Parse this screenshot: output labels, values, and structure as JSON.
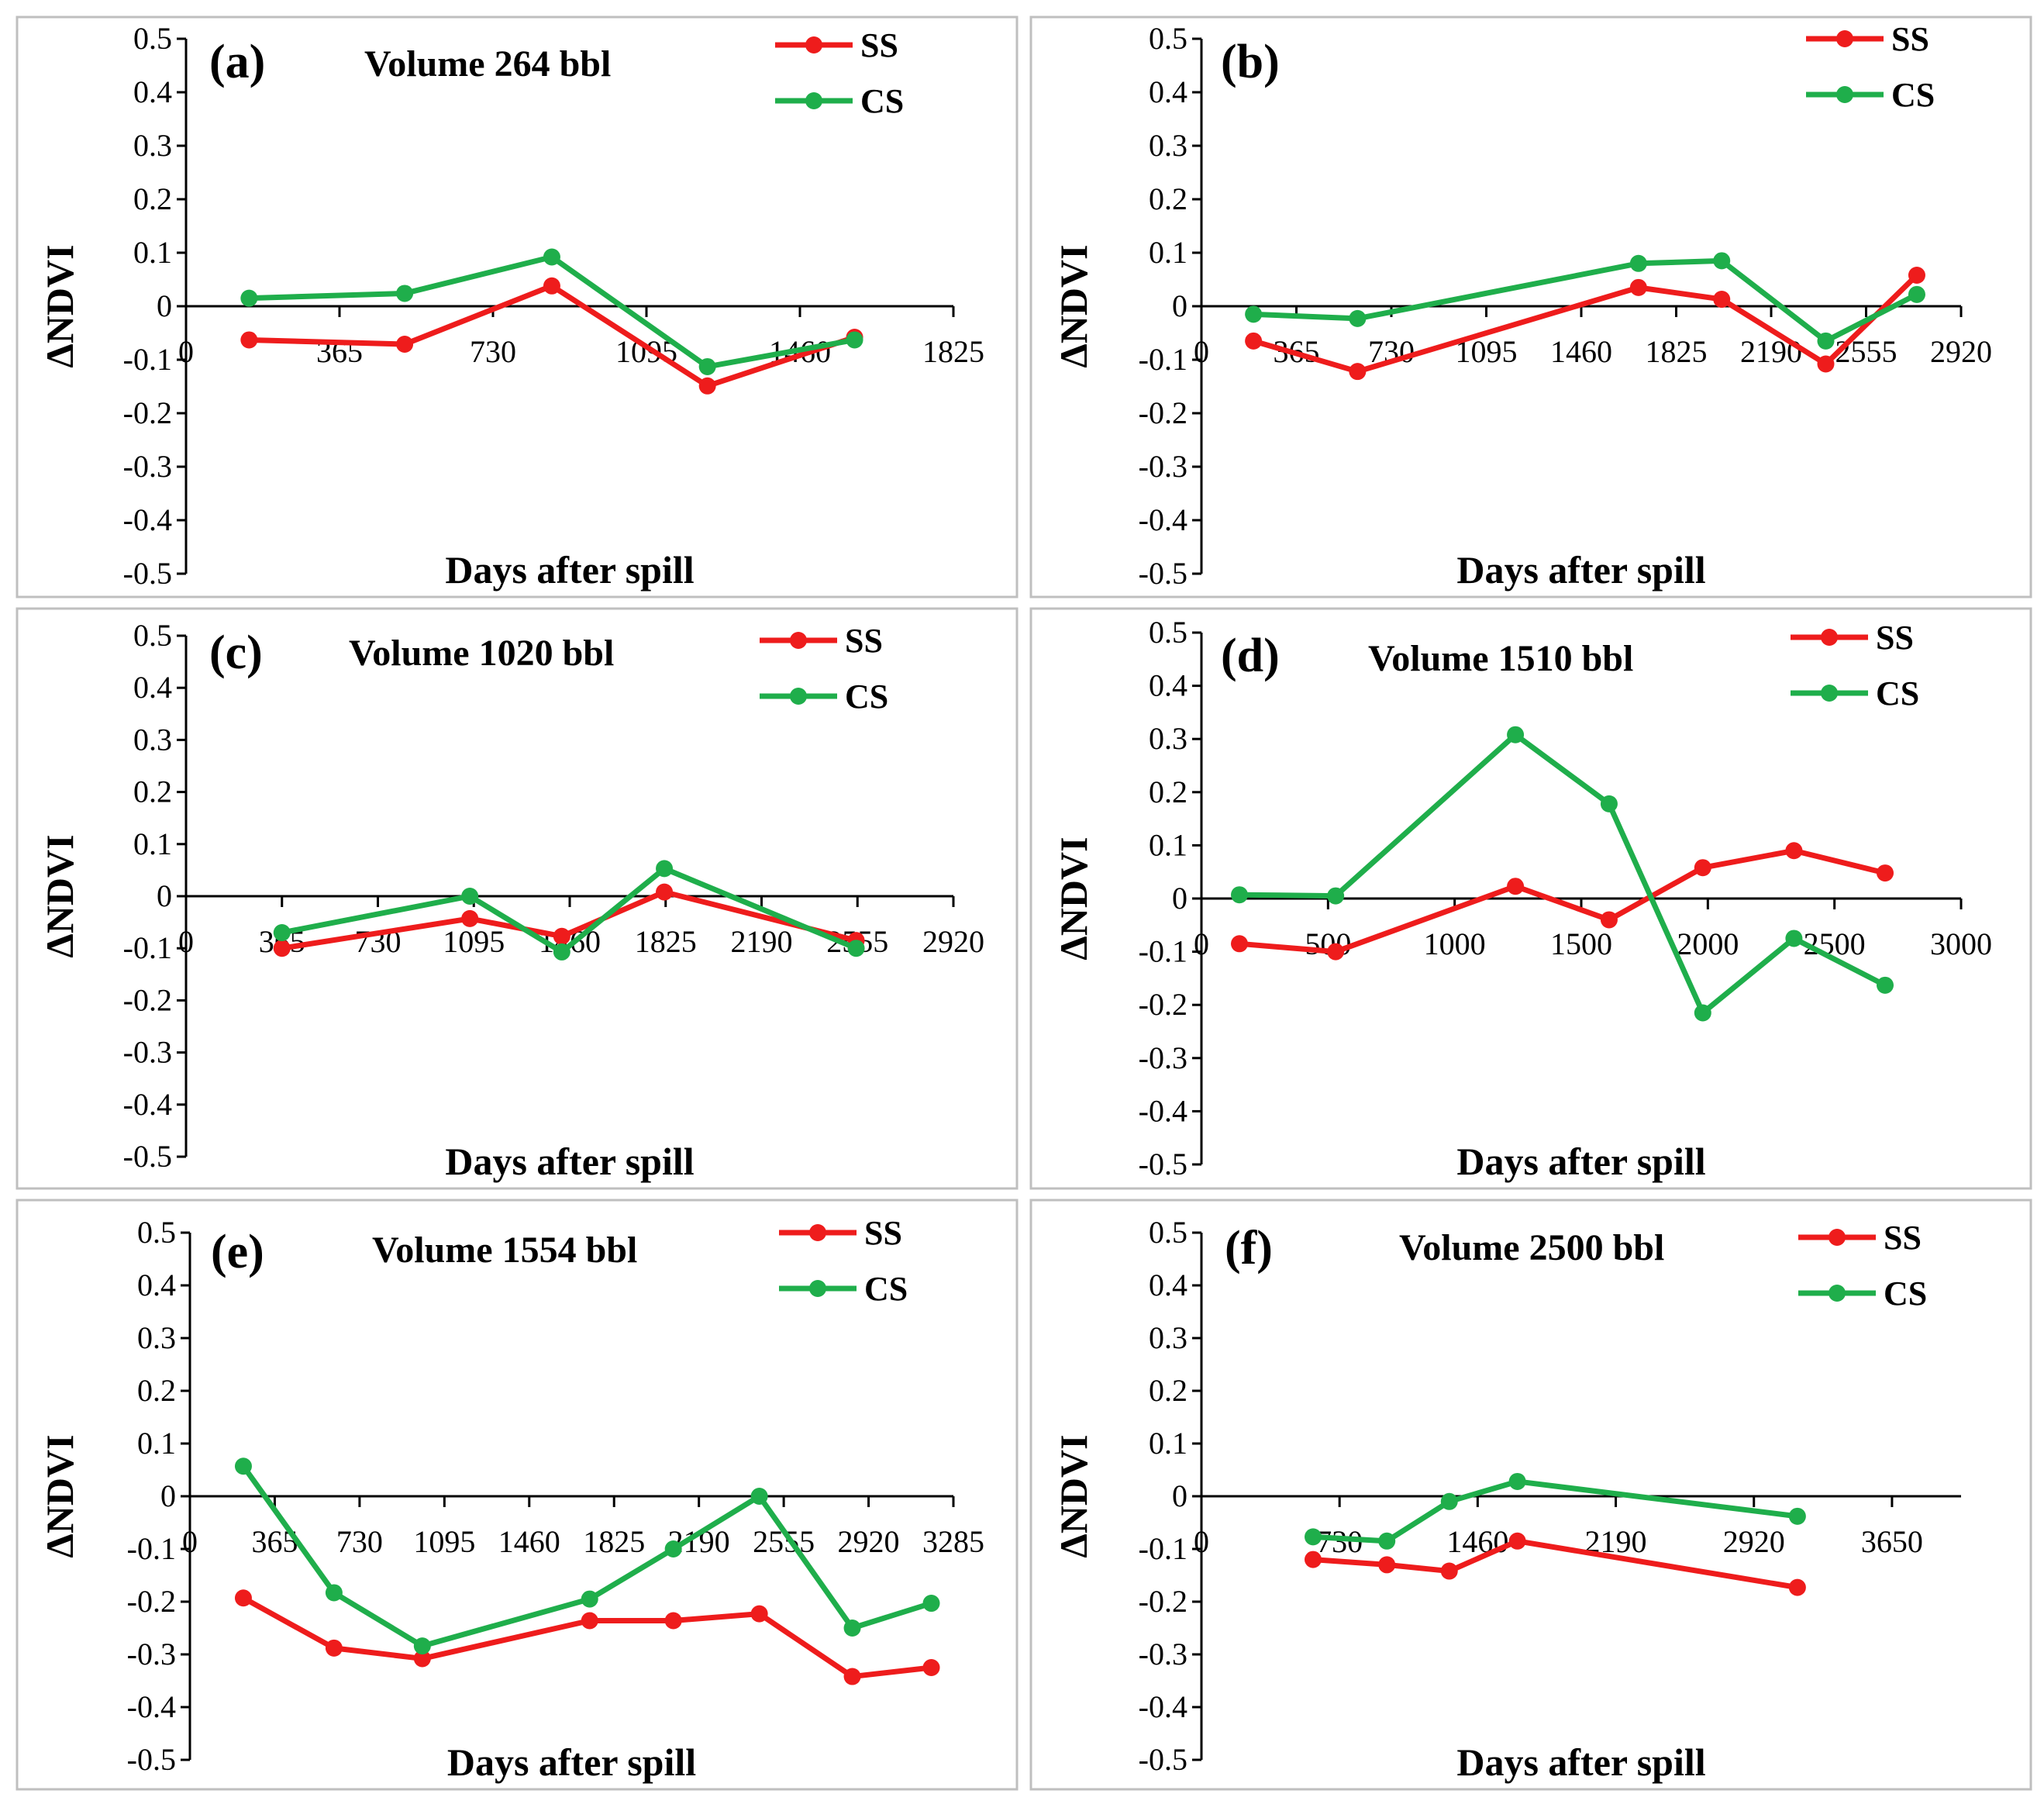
{
  "colors": {
    "SS": "#ee1c1c",
    "CS": "#1fae4b",
    "axis": "#000000",
    "frame": "#bfbfbf"
  },
  "chart_data": [
    {
      "type": "line",
      "label": "(a)",
      "title": "Volume 264 bbl",
      "xlabel": "Days after spill",
      "ylabel": "ΔNDVI",
      "xlim": [
        0,
        1825
      ],
      "xticks": [
        0,
        365,
        730,
        1095,
        1460,
        1825
      ],
      "xtick_labels": [
        "0",
        "365",
        "730",
        "1095",
        "1460",
        "1825"
      ],
      "ylim": [
        -0.5,
        0.5
      ],
      "yticks": [
        -0.5,
        -0.4,
        -0.3,
        -0.2,
        -0.1,
        0,
        0.1,
        0.2,
        0.3,
        0.4,
        0.5
      ],
      "ytick_labels": [
        "-0.5",
        "-0.4",
        "-0.3",
        "-0.2",
        "-0.1",
        "0",
        "0.1",
        "0.2",
        "0.3",
        "0.4",
        "0.5"
      ],
      "legend": [
        "SS",
        "CS"
      ],
      "series": [
        {
          "name": "SS",
          "x": [
            150,
            520,
            870,
            1240,
            1590
          ],
          "y": [
            -0.063,
            -0.071,
            0.038,
            -0.149,
            -0.058
          ]
        },
        {
          "name": "CS",
          "x": [
            150,
            520,
            870,
            1240,
            1590
          ],
          "y": [
            0.015,
            0.024,
            0.092,
            -0.113,
            -0.063
          ]
        }
      ]
    },
    {
      "type": "line",
      "label": "(b)",
      "title": "",
      "xlabel": "Days after spill",
      "ylabel": "ΔNDVI",
      "xlim": [
        0,
        2920
      ],
      "xticks": [
        0,
        365,
        730,
        1095,
        1460,
        1825,
        2190,
        2555,
        2920
      ],
      "xtick_labels": [
        "0",
        "365",
        "730",
        "1095",
        "1460",
        "1825",
        "2190",
        "2555",
        "2920"
      ],
      "ylim": [
        -0.5,
        0.5
      ],
      "yticks": [
        -0.5,
        -0.4,
        -0.3,
        -0.2,
        -0.1,
        0,
        0.1,
        0.2,
        0.3,
        0.4,
        0.5
      ],
      "ytick_labels": [
        "-0.5",
        "-0.4",
        "-0.3",
        "-0.2",
        "-0.1",
        "0",
        "0.1",
        "0.2",
        "0.3",
        "0.4",
        "0.5"
      ],
      "legend": [
        "SS",
        "CS"
      ],
      "series": [
        {
          "name": "SS",
          "x": [
            200,
            600,
            1680,
            2000,
            2400,
            2750
          ],
          "y": [
            -0.065,
            -0.122,
            0.035,
            0.013,
            -0.108,
            0.058
          ]
        },
        {
          "name": "CS",
          "x": [
            200,
            600,
            1680,
            2000,
            2400,
            2750
          ],
          "y": [
            -0.015,
            -0.023,
            0.08,
            0.085,
            -0.065,
            0.022
          ]
        }
      ]
    },
    {
      "type": "line",
      "label": "(c)",
      "title": "Volume 1020 bbl",
      "xlabel": "Days after spill",
      "ylabel": "ΔNDVI",
      "xlim": [
        0,
        2920
      ],
      "xticks": [
        0,
        365,
        730,
        1095,
        1460,
        1825,
        2190,
        2555,
        2920
      ],
      "xtick_labels": [
        "0",
        "365",
        "730",
        "1095",
        "1460",
        "1825",
        "2190",
        "2555",
        "2920"
      ],
      "ylim": [
        -0.5,
        0.5
      ],
      "yticks": [
        -0.5,
        -0.4,
        -0.3,
        -0.2,
        -0.1,
        0,
        0.1,
        0.2,
        0.3,
        0.4,
        0.5
      ],
      "ytick_labels": [
        "-0.5",
        "-0.4",
        "-0.3",
        "-0.2",
        "-0.1",
        "0",
        "0.1",
        "0.2",
        "0.3",
        "0.4",
        "0.5"
      ],
      "legend": [
        "SS",
        "CS"
      ],
      "series": [
        {
          "name": "SS",
          "x": [
            365,
            1080,
            1430,
            1820,
            2550
          ],
          "y": [
            -0.1,
            -0.043,
            -0.077,
            0.008,
            -0.085
          ]
        },
        {
          "name": "CS",
          "x": [
            365,
            1080,
            1430,
            1820,
            2550
          ],
          "y": [
            -0.07,
            0.0,
            -0.107,
            0.053,
            -0.1
          ]
        }
      ]
    },
    {
      "type": "line",
      "label": "(d)",
      "title": "Volume 1510 bbl",
      "xlabel": "Days after spill",
      "ylabel": "ΔNDVI",
      "xlim": [
        0,
        3000
      ],
      "xticks": [
        0,
        500,
        1000,
        1500,
        2000,
        2500,
        3000
      ],
      "xtick_labels": [
        "0",
        "500",
        "1000",
        "1500",
        "2000",
        "2500",
        "3000"
      ],
      "ylim": [
        -0.5,
        0.5
      ],
      "yticks": [
        -0.5,
        -0.4,
        -0.3,
        -0.2,
        -0.1,
        0,
        0.1,
        0.2,
        0.3,
        0.4,
        0.5
      ],
      "ytick_labels": [
        "-0.5",
        "-0.4",
        "-0.3",
        "-0.2",
        "-0.1",
        "0",
        "0.1",
        "0.2",
        "0.3",
        "0.4",
        "0.5"
      ],
      "legend": [
        "SS",
        "CS"
      ],
      "series": [
        {
          "name": "SS",
          "x": [
            150,
            530,
            1240,
            1610,
            1980,
            2340,
            2700
          ],
          "y": [
            -0.085,
            -0.1,
            0.023,
            -0.04,
            0.058,
            0.09,
            0.048
          ]
        },
        {
          "name": "CS",
          "x": [
            150,
            530,
            1240,
            1610,
            1980,
            2340,
            2700
          ],
          "y": [
            0.007,
            0.005,
            0.308,
            0.178,
            -0.215,
            -0.075,
            -0.163
          ]
        }
      ]
    },
    {
      "type": "line",
      "label": "(e)",
      "title": "Volume 1554 bbl",
      "xlabel": "Days after spill",
      "ylabel": "ΔNDVI",
      "xlim": [
        0,
        3285
      ],
      "xticks": [
        0,
        365,
        730,
        1095,
        1460,
        1825,
        2190,
        2555,
        2920,
        3285
      ],
      "xtick_labels": [
        "0",
        "365",
        "730",
        "1095",
        "1460",
        "1825",
        "2190",
        "2555",
        "2920",
        "3285"
      ],
      "ylim": [
        -0.5,
        0.5
      ],
      "yticks": [
        -0.5,
        -0.4,
        -0.3,
        -0.2,
        -0.1,
        0,
        0.1,
        0.2,
        0.3,
        0.4,
        0.5
      ],
      "ytick_labels": [
        "-0.5",
        "-0.4",
        "-0.3",
        "-0.2",
        "-0.1",
        "0",
        "0.1",
        "0.2",
        "0.3",
        "0.4",
        "0.5"
      ],
      "legend": [
        "SS",
        "CS"
      ],
      "series": [
        {
          "name": "SS",
          "x": [
            230,
            620,
            1000,
            1720,
            2080,
            2450,
            2850,
            3190
          ],
          "y": [
            -0.193,
            -0.288,
            -0.308,
            -0.236,
            -0.236,
            -0.223,
            -0.342,
            -0.325
          ]
        },
        {
          "name": "CS",
          "x": [
            230,
            620,
            1000,
            1720,
            2080,
            2450,
            2850,
            3190
          ],
          "y": [
            0.057,
            -0.183,
            -0.284,
            -0.195,
            -0.1,
            0.0,
            -0.25,
            -0.203
          ]
        }
      ]
    },
    {
      "type": "line",
      "label": "(f)",
      "title": "Volume 2500 bbl",
      "xlabel": "Days after spill",
      "ylabel": "ΔNDVI",
      "xlim": [
        0,
        4015
      ],
      "xticks": [
        0,
        730,
        1460,
        2190,
        2920,
        3650
      ],
      "xtick_labels": [
        "0",
        "730",
        "1460",
        "2190",
        "2920",
        "3650"
      ],
      "ylim": [
        -0.5,
        0.5
      ],
      "yticks": [
        -0.5,
        -0.4,
        -0.3,
        -0.2,
        -0.1,
        0,
        0.1,
        0.2,
        0.3,
        0.4,
        0.5
      ],
      "ytick_labels": [
        "-0.5",
        "-0.4",
        "-0.3",
        "-0.2",
        "-0.1",
        "0",
        "0.1",
        "0.2",
        "0.3",
        "0.4",
        "0.5"
      ],
      "legend": [
        "SS",
        "CS"
      ],
      "series": [
        {
          "name": "SS",
          "x": [
            590,
            980,
            1310,
            1670,
            3150
          ],
          "y": [
            -0.12,
            -0.13,
            -0.142,
            -0.085,
            -0.173
          ]
        },
        {
          "name": "CS",
          "x": [
            590,
            980,
            1310,
            1670,
            3150
          ],
          "y": [
            -0.077,
            -0.085,
            -0.01,
            0.028,
            -0.038
          ]
        }
      ]
    }
  ]
}
